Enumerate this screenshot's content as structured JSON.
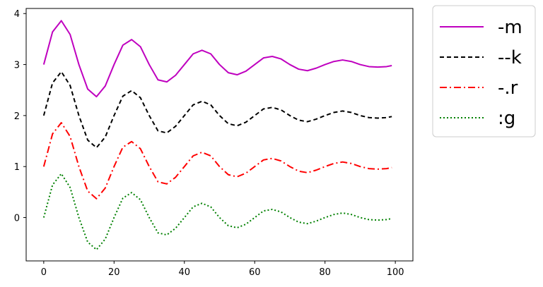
{
  "chart_data": {
    "type": "line",
    "title": "",
    "xlabel": "",
    "ylabel": "",
    "xlim": [
      -5,
      105
    ],
    "ylim": [
      -0.85,
      4.1
    ],
    "xticks": [
      0,
      20,
      40,
      60,
      80,
      100
    ],
    "yticks": [
      0,
      1,
      2,
      3,
      4
    ],
    "grid": false,
    "legend_position": "outside-top-right",
    "x": [
      0,
      2.5,
      5,
      7.5,
      10,
      12.5,
      15,
      17.5,
      20,
      22.5,
      25,
      27.5,
      30,
      32.5,
      35,
      37.5,
      40,
      42.5,
      45,
      47.5,
      50,
      52.5,
      55,
      57.5,
      60,
      62.5,
      65,
      67.5,
      70,
      72.5,
      75,
      77.5,
      80,
      82.5,
      85,
      87.5,
      90,
      92.5,
      95,
      97.5,
      99
    ],
    "series": [
      {
        "name": "-m",
        "color": "#bf00bf",
        "dash": "solid",
        "values": [
          3.0,
          3.64,
          3.86,
          3.59,
          3.0,
          2.52,
          2.37,
          2.58,
          3.0,
          3.38,
          3.49,
          3.35,
          3.0,
          2.7,
          2.66,
          2.79,
          3.0,
          3.21,
          3.28,
          3.21,
          3.0,
          2.84,
          2.8,
          2.87,
          3.0,
          3.13,
          3.16,
          3.11,
          3.0,
          2.91,
          2.88,
          2.93,
          3.0,
          3.06,
          3.09,
          3.06,
          3.0,
          2.96,
          2.95,
          2.96,
          2.98
        ]
      },
      {
        "name": "--k",
        "color": "#000000",
        "dash": "dashed",
        "values": [
          2.0,
          2.64,
          2.86,
          2.59,
          2.0,
          1.52,
          1.37,
          1.58,
          2.0,
          2.38,
          2.49,
          2.35,
          2.0,
          1.7,
          1.66,
          1.79,
          2.0,
          2.21,
          2.28,
          2.21,
          2.0,
          1.84,
          1.8,
          1.87,
          2.0,
          2.13,
          2.16,
          2.11,
          2.0,
          1.91,
          1.88,
          1.93,
          2.0,
          2.06,
          2.09,
          2.06,
          2.0,
          1.96,
          1.95,
          1.96,
          1.98
        ]
      },
      {
        "name": "-.r",
        "color": "#ff0000",
        "dash": "dashdot",
        "values": [
          1.0,
          1.64,
          1.86,
          1.59,
          1.0,
          0.52,
          0.37,
          0.58,
          1.0,
          1.38,
          1.49,
          1.35,
          1.0,
          0.7,
          0.66,
          0.79,
          1.0,
          1.21,
          1.28,
          1.21,
          1.0,
          0.84,
          0.8,
          0.87,
          1.0,
          1.13,
          1.16,
          1.11,
          1.0,
          0.91,
          0.88,
          0.93,
          1.0,
          1.06,
          1.09,
          1.06,
          1.0,
          0.96,
          0.95,
          0.96,
          0.98
        ]
      },
      {
        "name": ":g",
        "color": "#008000",
        "dash": "dotted",
        "values": [
          0.0,
          0.64,
          0.86,
          0.59,
          0.0,
          -0.48,
          -0.63,
          -0.42,
          0.0,
          0.38,
          0.49,
          0.35,
          0.0,
          -0.3,
          -0.34,
          -0.21,
          0.0,
          0.21,
          0.28,
          0.21,
          0.0,
          -0.16,
          -0.2,
          -0.13,
          0.0,
          0.13,
          0.16,
          0.11,
          0.0,
          -0.09,
          -0.12,
          -0.07,
          0.0,
          0.06,
          0.09,
          0.06,
          0.0,
          -0.04,
          -0.05,
          -0.04,
          -0.02
        ]
      }
    ]
  }
}
